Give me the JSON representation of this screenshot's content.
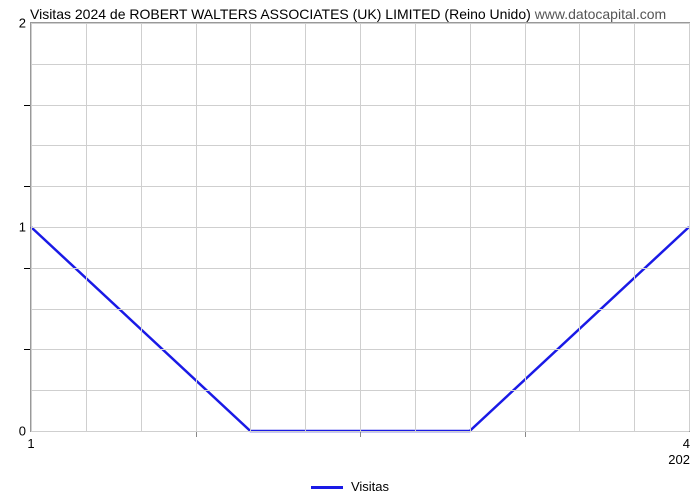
{
  "chart": {
    "type": "line",
    "title_main": "Visitas 2024 de ROBERT WALTERS ASSOCIATES (UK) LIMITED (Reino Unido)",
    "title_site": "www.datocapital.com",
    "title_fontsize": 14,
    "title_color": "#000000",
    "background_color": "#ffffff",
    "plot_border_color": "#999999",
    "grid_color": "#cfcfcf",
    "x": {
      "min": 1,
      "max": 4,
      "tick_labels": [
        "1",
        "4"
      ],
      "secondary_label": "202",
      "vgrid_positions": [
        1.0,
        1.25,
        1.5,
        1.75,
        2.0,
        2.25,
        2.5,
        2.75,
        3.0,
        3.25,
        3.5,
        3.75,
        4.0
      ],
      "minor_tick_positions": [
        1.75,
        2.5,
        3.25
      ]
    },
    "y": {
      "min": 0,
      "max": 2,
      "tick_labels": [
        "0",
        "1",
        "2"
      ],
      "tick_positions": [
        0,
        1,
        2
      ],
      "hgrid_positions": [
        0,
        0.2,
        0.4,
        0.6,
        0.8,
        1.0,
        1.2,
        1.4,
        1.6,
        1.8,
        2.0
      ],
      "minor_tick_positions": [
        0.4,
        0.8,
        1.2,
        1.6
      ]
    },
    "series": {
      "label": "Visitas",
      "color": "#1a1ae6",
      "line_width": 2.5,
      "x": [
        1,
        2,
        3,
        4
      ],
      "y": [
        1,
        0,
        0,
        1
      ]
    },
    "legend": {
      "position": "bottom-center",
      "fontsize": 13
    }
  }
}
